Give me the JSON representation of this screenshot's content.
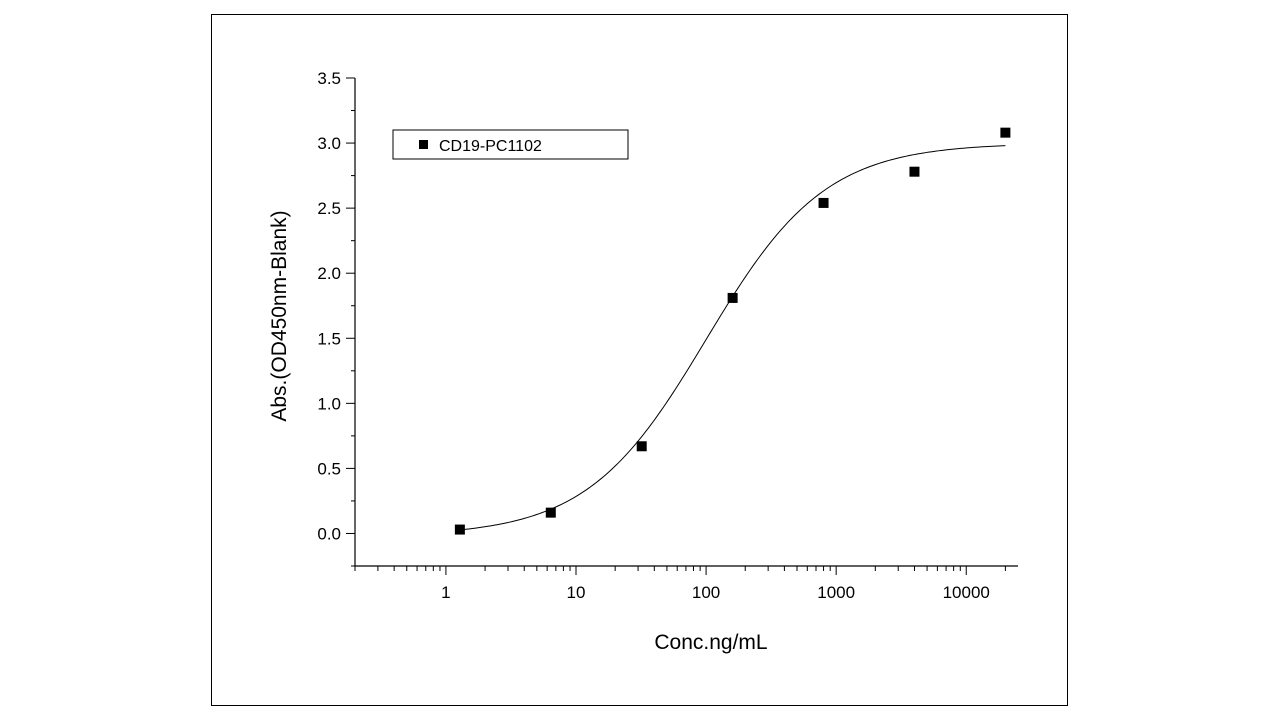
{
  "chart_data": {
    "type": "scatter",
    "xlabel": "Conc.ng/mL",
    "ylabel": "Abs.(OD450nm-Blank)",
    "x_scale": "log",
    "xlim": [
      0.2,
      25000
    ],
    "ylim": [
      -0.25,
      3.5
    ],
    "x_ticks": [
      1,
      10,
      100,
      1000,
      10000
    ],
    "x_tick_labels": [
      "1",
      "10",
      "100",
      "1000",
      "10000"
    ],
    "y_ticks": [
      0.0,
      0.5,
      1.0,
      1.5,
      2.0,
      2.5,
      3.0,
      3.5
    ],
    "y_tick_labels": [
      "0.0",
      "0.5",
      "1.0",
      "1.5",
      "2.0",
      "2.5",
      "3.0",
      "3.5"
    ],
    "grid": false,
    "legend_position": "top-left",
    "series": [
      {
        "name": "CD19-PC1102",
        "color": "#000000",
        "marker": "square",
        "x": [
          1.28,
          6.4,
          32,
          160,
          800,
          4000,
          20000
        ],
        "y": [
          0.03,
          0.16,
          0.67,
          1.81,
          2.54,
          2.78,
          3.08
        ]
      }
    ],
    "fit_curve": {
      "model": "4PL",
      "color": "#000000",
      "bottom": -0.02,
      "top": 3.0,
      "ec50": 100,
      "hill": 0.95,
      "x_range": [
        1.28,
        20000
      ]
    }
  }
}
